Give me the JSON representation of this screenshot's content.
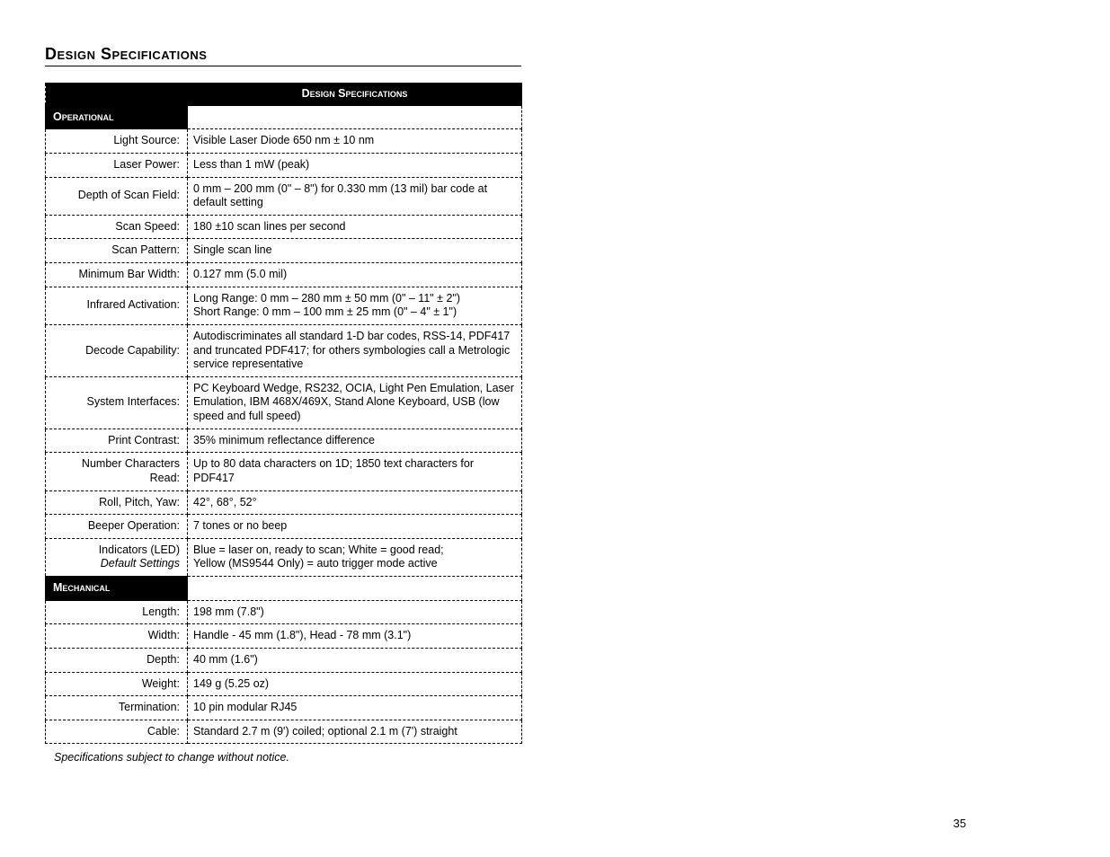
{
  "heading": "Design Specifications",
  "table_header": "Design Specifications",
  "footnote": "Specifications subject to change without notice.",
  "page_number": "35",
  "sections": [
    {
      "title": "Operational",
      "rows": [
        {
          "label": "Light Source:",
          "value": "Visible Laser Diode 650 nm ± 10 nm"
        },
        {
          "label": "Laser Power:",
          "value": "Less than 1 mW (peak)"
        },
        {
          "label": "Depth of Scan Field:",
          "value": "0 mm – 200 mm (0\" – 8\") for  0.330 mm (13 mil) bar code at default setting"
        },
        {
          "label": "Scan Speed:",
          "value": "180 ±10 scan lines per second"
        },
        {
          "label": "Scan Pattern:",
          "value": "Single scan line"
        },
        {
          "label": "Minimum Bar Width:",
          "value": "0.127 mm (5.0 mil)"
        },
        {
          "label": "Infrared Activation:",
          "value": "Long Range: 0 mm – 280 mm ± 50 mm (0\" – 11\" ± 2\")\nShort Range: 0 mm – 100 mm ± 25 mm (0\" – 4\" ± 1\")"
        },
        {
          "label": "Decode Capability:",
          "value": "Autodiscriminates all standard 1-D bar codes, RSS-14, PDF417 and truncated PDF417; for others symbologies call a Metrologic service representative"
        },
        {
          "label": "System Interfaces:",
          "value": "PC Keyboard Wedge, RS232, OCIA, Light Pen Emulation, Laser Emulation, IBM 468X/469X, Stand Alone Keyboard, USB (low speed and full speed)"
        },
        {
          "label": "Print Contrast:",
          "value": "35% minimum reflectance difference"
        },
        {
          "label": "Number Characters Read:",
          "value": "Up to 80 data characters on 1D; 1850 text characters for PDF417"
        },
        {
          "label": "Roll, Pitch, Yaw:",
          "value": "42°, 68°, 52°"
        },
        {
          "label": "Beeper Operation:",
          "value": "7 tones or no beep"
        },
        {
          "label": "Indicators (LED)",
          "label_sub": "Default Settings",
          "value": "Blue = laser on, ready to scan;   White = good read;\nYellow (MS9544 Only) = auto trigger mode active"
        }
      ]
    },
    {
      "title": "Mechanical",
      "rows": [
        {
          "label": "Length:",
          "value": "198 mm (7.8\")"
        },
        {
          "label": "Width:",
          "value": "Handle - 45 mm (1.8\"),  Head - 78 mm (3.1\")"
        },
        {
          "label": "Depth:",
          "value": "40 mm (1.6\")"
        },
        {
          "label": "Weight:",
          "value": "149 g (5.25 oz)"
        },
        {
          "label": "Termination:",
          "value": "10 pin modular RJ45"
        },
        {
          "label": "Cable:",
          "value": "Standard 2.7 m (9') coiled; optional 2.1 m (7') straight"
        }
      ]
    }
  ]
}
